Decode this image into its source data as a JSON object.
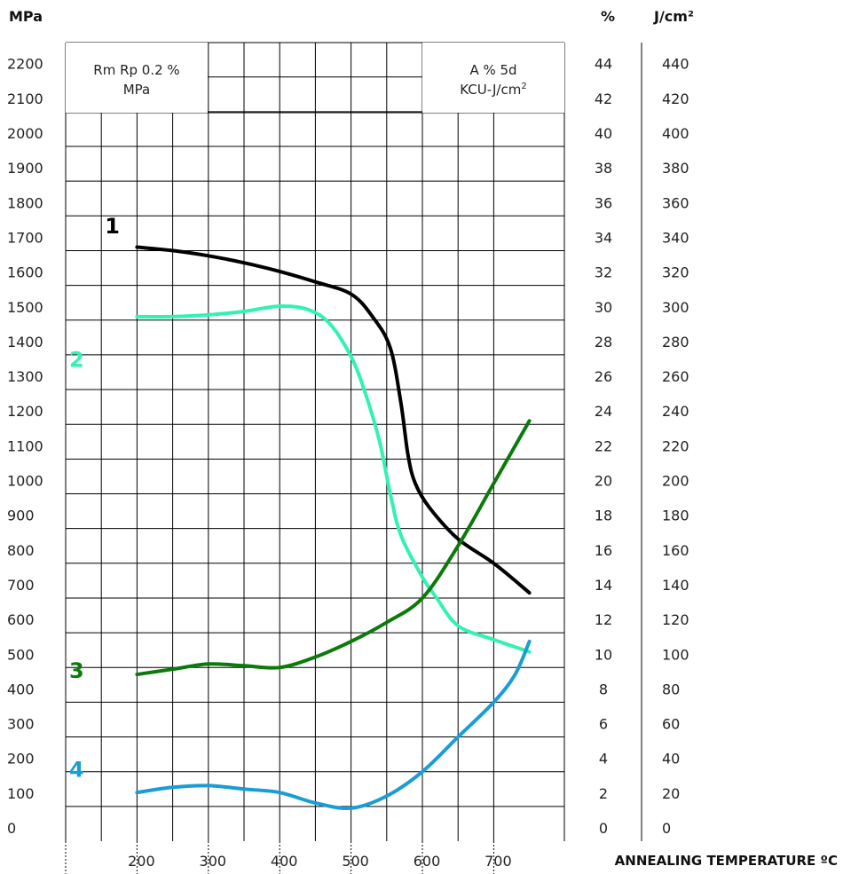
{
  "chart_data": {
    "type": "line",
    "title": "",
    "xlabel": "ANNEALING TEMPERATURE ºC",
    "ylabel_left": "MPa",
    "ylabel_right_1": "%",
    "ylabel_right_2": "J/cm²",
    "box_left": {
      "line1": "Rm Rp 0.2 %",
      "line2": "MPa"
    },
    "box_right": {
      "line1": "A % 5d",
      "line2_main": "KCU-J/cm",
      "line2_sup": "2"
    },
    "x_ticks": [
      200,
      300,
      400,
      500,
      600,
      700
    ],
    "xlim": [
      100,
      750
    ],
    "ylim": [
      0,
      2200
    ],
    "y_ticks": [
      0,
      100,
      200,
      300,
      400,
      500,
      600,
      700,
      800,
      900,
      1000,
      1100,
      1200,
      1300,
      1400,
      1500,
      1600,
      1700,
      1800,
      1900,
      2000,
      2100,
      2200
    ],
    "y_ticks_pct": [
      0,
      2,
      4,
      6,
      8,
      10,
      12,
      14,
      16,
      18,
      20,
      22,
      24,
      26,
      28,
      30,
      32,
      34,
      36,
      38,
      40,
      42,
      44
    ],
    "y_ticks_kcu": [
      0,
      20,
      40,
      60,
      80,
      100,
      120,
      140,
      160,
      180,
      200,
      220,
      240,
      260,
      280,
      300,
      320,
      340,
      360,
      380,
      400,
      420,
      440
    ],
    "series": [
      {
        "name": "1",
        "color": "#000000",
        "points": [
          [
            200,
            1710
          ],
          [
            250,
            1700
          ],
          [
            300,
            1685
          ],
          [
            350,
            1665
          ],
          [
            400,
            1640
          ],
          [
            450,
            1610
          ],
          [
            500,
            1575
          ],
          [
            530,
            1510
          ],
          [
            555,
            1420
          ],
          [
            570,
            1260
          ],
          [
            580,
            1110
          ],
          [
            590,
            1030
          ],
          [
            610,
            960
          ],
          [
            650,
            870
          ],
          [
            700,
            800
          ],
          [
            750,
            715
          ]
        ]
      },
      {
        "name": "2",
        "color": "#33f2b0",
        "points": [
          [
            200,
            1510
          ],
          [
            250,
            1510
          ],
          [
            300,
            1515
          ],
          [
            350,
            1525
          ],
          [
            400,
            1540
          ],
          [
            440,
            1530
          ],
          [
            470,
            1490
          ],
          [
            500,
            1395
          ],
          [
            520,
            1290
          ],
          [
            540,
            1150
          ],
          [
            555,
            1000
          ],
          [
            570,
            880
          ],
          [
            600,
            760
          ],
          [
            620,
            700
          ],
          [
            650,
            620
          ],
          [
            700,
            580
          ],
          [
            750,
            545
          ]
        ]
      },
      {
        "name": "3",
        "color": "#0b7a0b",
        "points": [
          [
            200,
            480
          ],
          [
            250,
            495
          ],
          [
            300,
            510
          ],
          [
            350,
            505
          ],
          [
            400,
            500
          ],
          [
            450,
            530
          ],
          [
            500,
            575
          ],
          [
            550,
            630
          ],
          [
            600,
            700
          ],
          [
            650,
            850
          ],
          [
            700,
            1030
          ],
          [
            750,
            1210
          ]
        ]
      },
      {
        "name": "4",
        "color": "#1a9dd4",
        "points": [
          [
            200,
            140
          ],
          [
            250,
            155
          ],
          [
            300,
            160
          ],
          [
            350,
            150
          ],
          [
            400,
            140
          ],
          [
            450,
            110
          ],
          [
            500,
            95
          ],
          [
            550,
            130
          ],
          [
            600,
            200
          ],
          [
            650,
            300
          ],
          [
            700,
            400
          ],
          [
            730,
            480
          ],
          [
            750,
            575
          ]
        ]
      }
    ],
    "label_positions": [
      {
        "text": "1",
        "x": 155,
        "y": 1750,
        "color": "#000000"
      },
      {
        "text": "2",
        "x": 105,
        "y": 1365,
        "color": "#33f2b0"
      },
      {
        "text": "3",
        "x": 105,
        "y": 470,
        "color": "#0b7a0b"
      },
      {
        "text": "4",
        "x": 105,
        "y": 185,
        "color": "#1a9dd4"
      }
    ]
  }
}
